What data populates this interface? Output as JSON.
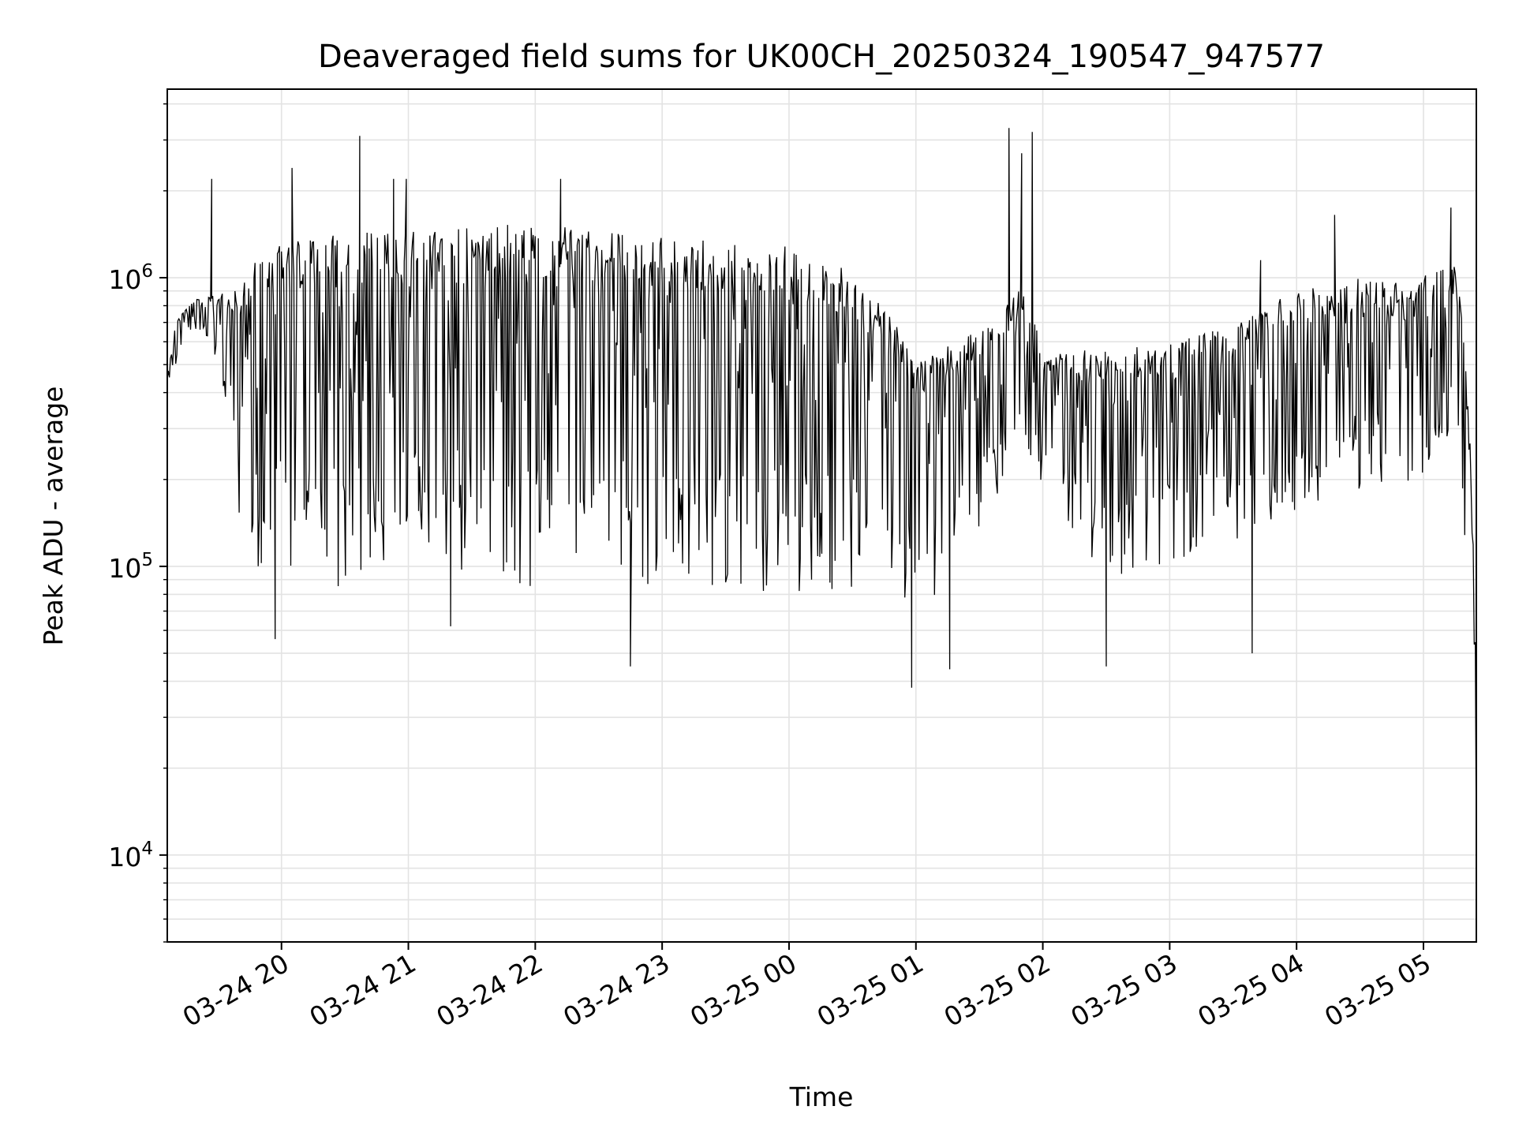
{
  "chart_data": {
    "type": "line",
    "title": "Deaveraged field sums for UK00CH_20250324_190547_947577",
    "xlabel": "Time",
    "ylabel": "Peak ADU - average",
    "yscale": "log",
    "ylim": [
      5000,
      4500000
    ],
    "xlim": [
      "2025-03-24 19:06",
      "2025-03-25 05:25"
    ],
    "grid": true,
    "x_ticks": [
      {
        "value": "2025-03-24 20:00",
        "label": "03-24 20"
      },
      {
        "value": "2025-03-24 21:00",
        "label": "03-24 21"
      },
      {
        "value": "2025-03-24 22:00",
        "label": "03-24 22"
      },
      {
        "value": "2025-03-24 23:00",
        "label": "03-24 23"
      },
      {
        "value": "2025-03-25 00:00",
        "label": "03-25 00"
      },
      {
        "value": "2025-03-25 01:00",
        "label": "03-25 01"
      },
      {
        "value": "2025-03-25 02:00",
        "label": "03-25 02"
      },
      {
        "value": "2025-03-25 03:00",
        "label": "03-25 03"
      },
      {
        "value": "2025-03-25 04:00",
        "label": "03-25 04"
      },
      {
        "value": "2025-03-25 05:00",
        "label": "03-25 05"
      }
    ],
    "y_ticks": [
      {
        "value": 10000,
        "base": "10",
        "exp": "4"
      },
      {
        "value": 100000,
        "base": "10",
        "exp": "5"
      },
      {
        "value": 1000000,
        "base": "10",
        "exp": "6"
      }
    ],
    "series": [
      {
        "color": "#000000",
        "envelope": [
          {
            "x": "2025-03-24 19:06",
            "high": 450000,
            "low": 420000
          },
          {
            "x": "2025-03-24 19:10",
            "high": 720000,
            "low": 500000
          },
          {
            "x": "2025-03-24 19:16",
            "high": 800000,
            "low": 620000
          },
          {
            "x": "2025-03-24 19:20",
            "high": 850000,
            "low": 660000
          },
          {
            "x": "2025-03-24 19:24",
            "high": 880000,
            "low": 620000
          },
          {
            "x": "2025-03-24 19:30",
            "high": 860000,
            "low": 500000
          },
          {
            "x": "2025-03-24 19:36",
            "high": 920000,
            "low": 280000
          },
          {
            "x": "2025-03-24 19:42",
            "high": 1000000,
            "low": 110000
          },
          {
            "x": "2025-03-24 19:50",
            "high": 1200000,
            "low": 85000
          },
          {
            "x": "2025-03-24 20:00",
            "high": 1300000,
            "low": 90000
          },
          {
            "x": "2025-03-24 20:20",
            "high": 1400000,
            "low": 85000
          },
          {
            "x": "2025-03-24 20:40",
            "high": 1450000,
            "low": 82000
          },
          {
            "x": "2025-03-24 21:00",
            "high": 1450000,
            "low": 110000
          },
          {
            "x": "2025-03-24 21:30",
            "high": 1500000,
            "low": 90000
          },
          {
            "x": "2025-03-24 22:00",
            "high": 1550000,
            "low": 85000
          },
          {
            "x": "2025-03-24 22:30",
            "high": 1450000,
            "low": 80000
          },
          {
            "x": "2025-03-24 23:00",
            "high": 1400000,
            "low": 85000
          },
          {
            "x": "2025-03-24 23:30",
            "high": 1350000,
            "low": 85000
          },
          {
            "x": "2025-03-25 00:00",
            "high": 1300000,
            "low": 80000
          },
          {
            "x": "2025-03-25 00:30",
            "high": 1050000,
            "low": 85000
          },
          {
            "x": "2025-03-25 00:50",
            "high": 700000,
            "low": 75000
          },
          {
            "x": "2025-03-25 01:00",
            "high": 520000,
            "low": 60000
          },
          {
            "x": "2025-03-25 01:20",
            "high": 600000,
            "low": 90000
          },
          {
            "x": "2025-03-25 01:40",
            "high": 750000,
            "low": 170000
          },
          {
            "x": "2025-03-25 01:50",
            "high": 1000000,
            "low": 200000
          },
          {
            "x": "2025-03-25 02:00",
            "high": 560000,
            "low": 180000
          },
          {
            "x": "2025-03-25 02:30",
            "high": 560000,
            "low": 90000
          },
          {
            "x": "2025-03-25 03:00",
            "high": 600000,
            "low": 100000
          },
          {
            "x": "2025-03-25 03:30",
            "high": 700000,
            "low": 120000
          },
          {
            "x": "2025-03-25 04:00",
            "high": 900000,
            "low": 140000
          },
          {
            "x": "2025-03-25 04:30",
            "high": 1000000,
            "low": 180000
          },
          {
            "x": "2025-03-25 05:00",
            "high": 1050000,
            "low": 200000
          },
          {
            "x": "2025-03-25 05:15",
            "high": 1100000,
            "low": 250000
          },
          {
            "x": "2025-03-25 05:19",
            "high": 700000,
            "low": 80000
          },
          {
            "x": "2025-03-25 05:22",
            "high": 300000,
            "low": 18000
          },
          {
            "x": "2025-03-25 05:24",
            "high": 90000,
            "low": 7000
          },
          {
            "x": "2025-03-25 05:25",
            "high": 120000,
            "low": 7000
          }
        ],
        "spikes": [
          {
            "x": "2025-03-24 19:27",
            "y": 2200000
          },
          {
            "x": "2025-03-24 19:57",
            "y": 56000
          },
          {
            "x": "2025-03-24 20:05",
            "y": 2400000
          },
          {
            "x": "2025-03-24 20:37",
            "y": 3100000
          },
          {
            "x": "2025-03-24 20:53",
            "y": 2200000
          },
          {
            "x": "2025-03-24 20:59",
            "y": 2200000
          },
          {
            "x": "2025-03-24 21:20",
            "y": 62000
          },
          {
            "x": "2025-03-24 22:12",
            "y": 2200000
          },
          {
            "x": "2025-03-24 22:45",
            "y": 45000
          },
          {
            "x": "2025-03-25 00:58",
            "y": 38000
          },
          {
            "x": "2025-03-25 01:16",
            "y": 44000
          },
          {
            "x": "2025-03-25 01:44",
            "y": 3300000
          },
          {
            "x": "2025-03-25 01:50",
            "y": 2700000
          },
          {
            "x": "2025-03-25 01:55",
            "y": 3200000
          },
          {
            "x": "2025-03-25 02:30",
            "y": 45000
          },
          {
            "x": "2025-03-25 03:39",
            "y": 50000
          },
          {
            "x": "2025-03-25 03:43",
            "y": 1150000
          },
          {
            "x": "2025-03-25 04:18",
            "y": 1650000
          },
          {
            "x": "2025-03-25 05:13",
            "y": 1750000
          }
        ]
      }
    ]
  }
}
